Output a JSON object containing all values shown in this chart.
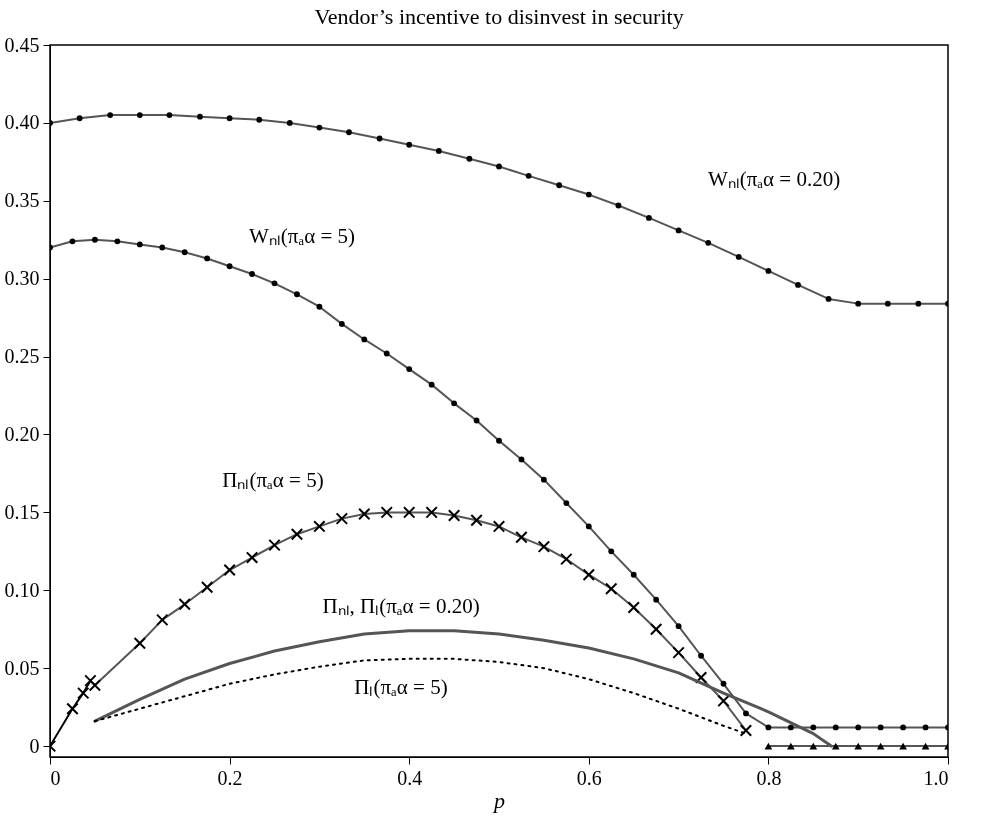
{
  "chart_data": {
    "type": "line",
    "title": "Vendor’s incentive to disinvest in security",
    "xlabel": "p",
    "xlim": [
      0,
      1
    ],
    "ylim": [
      -0.007,
      0.45
    ],
    "xticks": [
      0,
      0.2,
      0.4,
      0.6,
      0.8,
      {
        "value": 1,
        "label": "1.0"
      }
    ],
    "yticks": [
      0,
      0.05,
      {
        "value": 0.1,
        "label": "0.10"
      },
      0.15,
      {
        "value": 0.2,
        "label": "0.20"
      },
      0.25,
      {
        "value": 0.3,
        "label": "0.30"
      },
      0.35,
      {
        "value": 0.4,
        "label": "0.40"
      },
      0.45
    ],
    "grid": false,
    "series": [
      {
        "color": "#555555",
        "marker": "circle",
        "line_style": "solid",
        "x": [
          0,
          0.033,
          0.067,
          0.1,
          0.133,
          0.167,
          0.2,
          0.233,
          0.267,
          0.3,
          0.333,
          0.367,
          0.4,
          0.433,
          0.467,
          0.5,
          0.533,
          0.567,
          0.6,
          0.633,
          0.667,
          0.7,
          0.733,
          0.767,
          0.8,
          0.833,
          0.867,
          0.9,
          0.933,
          0.967,
          1
        ],
        "values": [
          0.4,
          0.403,
          0.405,
          0.405,
          0.405,
          0.404,
          0.403,
          0.402,
          0.4,
          0.397,
          0.394,
          0.39,
          0.386,
          0.382,
          0.377,
          0.372,
          0.366,
          0.36,
          0.354,
          0.347,
          0.339,
          0.331,
          0.323,
          0.314,
          0.305,
          0.296,
          0.287,
          0.284,
          0.284,
          0.284,
          0.284
        ]
      },
      {
        "color": "#555555",
        "marker": "circle",
        "line_style": "solid",
        "x": [
          0,
          0.025,
          0.05,
          0.075,
          0.1,
          0.125,
          0.15,
          0.175,
          0.2,
          0.225,
          0.25,
          0.275,
          0.3,
          0.325,
          0.35,
          0.375,
          0.4,
          0.425,
          0.45,
          0.475,
          0.5,
          0.525,
          0.55,
          0.575,
          0.6,
          0.625,
          0.65,
          0.675,
          0.7,
          0.725,
          0.75,
          0.775,
          0.8,
          0.825,
          0.85,
          0.875,
          0.9,
          0.925,
          0.95,
          0.975,
          1
        ],
        "values": [
          0.32,
          0.324,
          0.325,
          0.324,
          0.322,
          0.32,
          0.317,
          0.313,
          0.308,
          0.303,
          0.297,
          0.29,
          0.282,
          0.271,
          0.261,
          0.252,
          0.242,
          0.232,
          0.22,
          0.209,
          0.196,
          0.184,
          0.171,
          0.156,
          0.141,
          0.125,
          0.11,
          0.094,
          0.077,
          0.058,
          0.04,
          0.021,
          0.012,
          0.012,
          0.012,
          0.012,
          0.012,
          0.012,
          0.012,
          0.012,
          0.012
        ]
      },
      {
        "color": "#555555",
        "marker": "cross",
        "line_style": "solid",
        "x": [
          0.05,
          0.1,
          0.125,
          0.15,
          0.175,
          0.2,
          0.225,
          0.25,
          0.275,
          0.3,
          0.325,
          0.35,
          0.375,
          0.4,
          0.425,
          0.45,
          0.475,
          0.5,
          0.525,
          0.55,
          0.575,
          0.6,
          0.625,
          0.65,
          0.675,
          0.7,
          0.725,
          0.75,
          0.775
        ],
        "values": [
          0.039,
          0.066,
          0.081,
          0.091,
          0.102,
          0.113,
          0.121,
          0.129,
          0.136,
          0.141,
          0.146,
          0.149,
          0.15,
          0.15,
          0.15,
          0.148,
          0.145,
          0.141,
          0.134,
          0.128,
          0.12,
          0.11,
          0.101,
          0.089,
          0.075,
          0.06,
          0.044,
          0.029,
          0.01
        ]
      },
      {
        "color": "#000000",
        "marker": "cross",
        "line_style": "solid",
        "x": [
          0,
          0.025,
          0.037,
          0.045
        ],
        "values": [
          0,
          0.024,
          0.034,
          0.042
        ]
      },
      {
        "color": "#555555",
        "marker": "triangle",
        "line_style": "solid",
        "x": [
          0.8,
          0.825,
          0.85,
          0.875,
          0.9,
          0.925,
          0.95,
          0.975,
          1
        ],
        "values": [
          0,
          0,
          0,
          0,
          0,
          0,
          0,
          0,
          0
        ]
      },
      {
        "color": "#555555",
        "marker": "none",
        "line_style": "solid",
        "x": [
          0.05,
          0.1,
          0.15,
          0.2,
          0.25,
          0.3,
          0.35,
          0.4,
          0.45,
          0.5,
          0.55,
          0.6,
          0.65,
          0.7,
          0.75,
          0.8,
          0.85,
          0.87
        ],
        "values": [
          0.016,
          0.03,
          0.043,
          0.053,
          0.061,
          0.067,
          0.072,
          0.074,
          0.074,
          0.072,
          0.068,
          0.063,
          0.056,
          0.047,
          0.034,
          0.022,
          0.008,
          0
        ]
      },
      {
        "color": "#000000",
        "marker": "none",
        "line_style": "dotted",
        "x": [
          0.05,
          0.1,
          0.15,
          0.2,
          0.25,
          0.3,
          0.35,
          0.4,
          0.45,
          0.5,
          0.55,
          0.6,
          0.65,
          0.7,
          0.75,
          0.775
        ],
        "values": [
          0.016,
          0.024,
          0.032,
          0.04,
          0.046,
          0.051,
          0.055,
          0.056,
          0.056,
          0.054,
          0.05,
          0.043,
          0.034,
          0.024,
          0.013,
          0.008
        ]
      }
    ],
    "annotations": [
      "Wₙₗ(πₐα = 0.20)",
      "Wₙₗ(πₐα = 5)",
      "Πₙₗ(πₐα = 5)",
      "Πₙₗ, Πₗ(πₐα = 0.20)",
      "Πₗ(πₐα = 5)"
    ]
  }
}
